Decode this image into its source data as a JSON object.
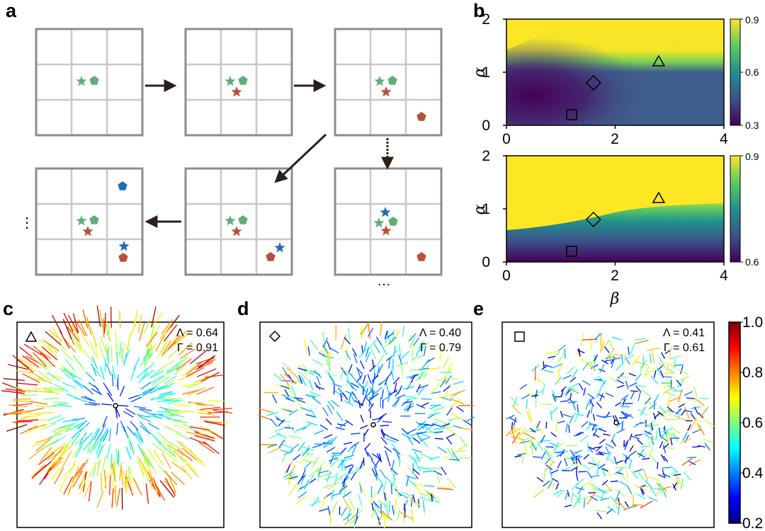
{
  "panel_labels": [
    "a",
    "b",
    "c",
    "d",
    "e"
  ],
  "colors": {
    "green": "#5fae78",
    "red": "#b9503a",
    "blue": "#1f6fb0",
    "grid_border": "#8c8c8c",
    "grid_inner": "#c8c8c8"
  },
  "panel_a": {
    "markers": [
      "star-icon",
      "pentagon-icon"
    ],
    "ellipsis_left": "⋮",
    "ellipsis_bottom": "…"
  },
  "chart_data": [
    {
      "type": "heatmap",
      "panel": "b-top",
      "xlabel": "",
      "ylabel": "α",
      "xlim": [
        0,
        4
      ],
      "ylim": [
        0,
        2
      ],
      "xticks": [
        "0",
        "2",
        "4"
      ],
      "yticks": [
        "0",
        "1",
        "2"
      ],
      "colorbar": {
        "colormap": "viridis",
        "range": [
          0.3,
          0.9
        ],
        "ticks": [
          "0.3",
          "0.6",
          "0.9"
        ]
      },
      "markers": [
        {
          "shape": "triangle",
          "beta": 2.8,
          "alpha": 1.2
        },
        {
          "shape": "diamond",
          "beta": 1.6,
          "alpha": 0.8
        },
        {
          "shape": "square",
          "beta": 1.2,
          "alpha": 0.2
        }
      ]
    },
    {
      "type": "heatmap",
      "panel": "b-bottom",
      "xlabel": "β",
      "ylabel": "α",
      "xlim": [
        0,
        4
      ],
      "ylim": [
        0,
        2
      ],
      "xticks": [
        "0",
        "2",
        "4"
      ],
      "yticks": [
        "0",
        "1",
        "2"
      ],
      "colorbar": {
        "colormap": "viridis",
        "range": [
          0.6,
          0.9
        ],
        "ticks": [
          "0.6",
          "0.9"
        ]
      },
      "markers": [
        {
          "shape": "triangle",
          "beta": 2.8,
          "alpha": 1.2
        },
        {
          "shape": "diamond",
          "beta": 1.6,
          "alpha": 0.8
        },
        {
          "shape": "square",
          "beta": 1.2,
          "alpha": 0.2
        }
      ]
    },
    {
      "type": "scatter",
      "panel": "c",
      "marker": "triangle",
      "stat_lambda": "Λ = 0.64",
      "stat_gamma": "Γ = 0.91"
    },
    {
      "type": "scatter",
      "panel": "d",
      "marker": "diamond",
      "stat_lambda": "Λ = 0.40",
      "stat_gamma": "Γ = 0.79"
    },
    {
      "type": "scatter",
      "panel": "e",
      "marker": "square",
      "stat_lambda": "Λ = 0.41",
      "stat_gamma": "Γ = 0.61"
    }
  ],
  "colorbar_cde": {
    "colormap": "jet",
    "range": [
      0.2,
      1.0
    ],
    "ticks": [
      "1.0",
      "0.8",
      "0.6",
      "0.4",
      "0.2"
    ]
  }
}
